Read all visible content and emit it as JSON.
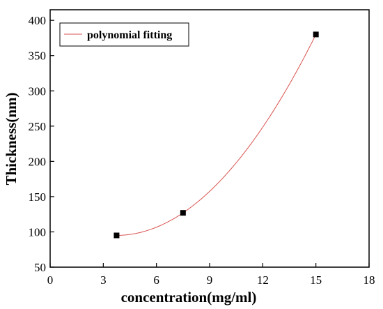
{
  "chart_data": {
    "type": "scatter",
    "title": "",
    "xlabel": "concentration(mg/ml)",
    "ylabel": "Thickness(nm)",
    "xlim": [
      0,
      18
    ],
    "ylim": [
      50,
      415
    ],
    "x_ticks": [
      0,
      3,
      6,
      9,
      12,
      15,
      18
    ],
    "y_ticks": [
      50,
      100,
      150,
      200,
      250,
      300,
      350,
      400
    ],
    "grid": false,
    "legend_position": "top-left",
    "series": [
      {
        "type": "scatter",
        "marker": "square",
        "color": "#000000",
        "x": [
          3.75,
          7.5,
          15
        ],
        "y": [
          95,
          127,
          380
        ]
      },
      {
        "type": "line",
        "name": "polynomial fitting",
        "color": "#d9534f",
        "fit": "polynomial",
        "x": [
          3.75,
          7.5,
          15
        ],
        "y": [
          95,
          127,
          380
        ]
      }
    ]
  }
}
